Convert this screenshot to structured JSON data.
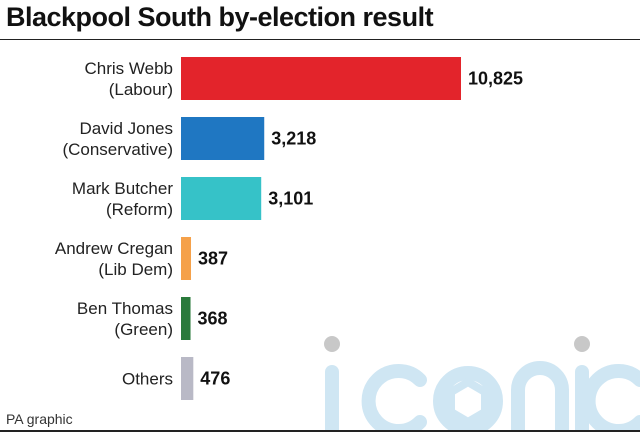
{
  "header": {
    "title": "Blackpool South by-election result"
  },
  "footer": {
    "source": "PA graphic"
  },
  "watermark": {
    "text": "iconic",
    "color": "#cfe6f3"
  },
  "chart_data": {
    "type": "bar",
    "orientation": "horizontal",
    "title": "Blackpool South by-election result",
    "categories": [
      [
        "Chris Webb",
        "(Labour)"
      ],
      [
        "David Jones",
        "(Conservative)"
      ],
      [
        "Mark Butcher",
        "(Reform)"
      ],
      [
        "Andrew Cregan",
        "(Lib Dem)"
      ],
      [
        "Ben Thomas",
        "(Green)"
      ],
      [
        "Others"
      ]
    ],
    "values": [
      10825,
      3218,
      3101,
      387,
      368,
      476
    ],
    "value_labels": [
      "10,825",
      "3,218",
      "3,101",
      "387",
      "368",
      "476"
    ],
    "colors": [
      "#e3242b",
      "#1f77c2",
      "#36c2c8",
      "#f5a14a",
      "#2a7a3b",
      "#b9b9c6"
    ],
    "xlim": [
      0,
      10825
    ],
    "grid": false,
    "legend": "none"
  }
}
